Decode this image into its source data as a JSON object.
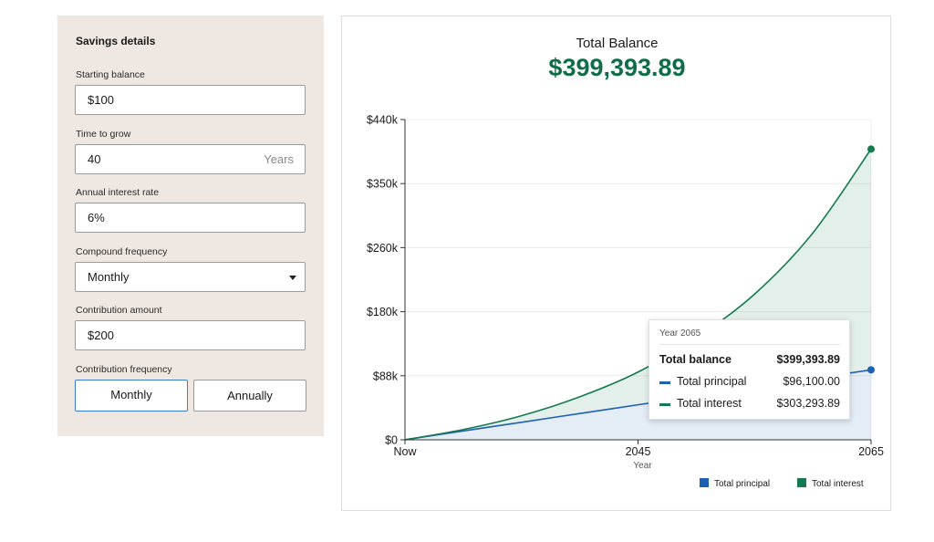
{
  "panel": {
    "title": "Savings details",
    "starting_balance": {
      "label": "Starting balance",
      "value": "$100"
    },
    "time_to_grow": {
      "label": "Time to grow",
      "value": "40",
      "suffix": "Years"
    },
    "interest_rate": {
      "label": "Annual interest rate",
      "value": "6%"
    },
    "compound_frequency": {
      "label": "Compound frequency",
      "value": "Monthly"
    },
    "contribution_amount": {
      "label": "Contribution amount",
      "value": "$200"
    },
    "contribution_frequency": {
      "label": "Contribution frequency",
      "options": [
        "Monthly",
        "Annually"
      ],
      "selected": "Monthly"
    }
  },
  "summary": {
    "label": "Total Balance",
    "value": "$399,393.89"
  },
  "tooltip": {
    "year": "Year 2065",
    "total_label": "Total balance",
    "total_value": "$399,393.89",
    "principal_label": "Total principal",
    "principal_value": "$96,100.00",
    "interest_label": "Total interest",
    "interest_value": "$303,293.89"
  },
  "colors": {
    "principal": "#1f5fb4",
    "interest": "#157a4f",
    "accent": "#0f6e47"
  },
  "chart_data": {
    "type": "area",
    "x_tick_labels": [
      "Now",
      "2045",
      "2065"
    ],
    "x_values": [
      2025,
      2045,
      2065
    ],
    "xlabel": "Year",
    "y_tick_labels": [
      "$0",
      "$88k",
      "$180k",
      "$260k",
      "$350k",
      "$440k"
    ],
    "ylim": [
      0,
      440000
    ],
    "stacked": true,
    "legend": "bottom-right",
    "series": [
      {
        "name": "Total principal",
        "color": "#1f5fb4",
        "x": [
          2025,
          2030,
          2035,
          2040,
          2045,
          2050,
          2055,
          2060,
          2065
        ],
        "values": [
          100,
          12100,
          24100,
          36100,
          48100,
          60100,
          72100,
          84100,
          96100
        ]
      },
      {
        "name": "Total interest",
        "color": "#157a4f",
        "x": [
          2025,
          2030,
          2035,
          2040,
          2045,
          2050,
          2055,
          2060,
          2065
        ],
        "values": [
          0,
          2000,
          9000,
          23000,
          45000,
          80000,
          128000,
          200000,
          303294
        ]
      }
    ]
  }
}
